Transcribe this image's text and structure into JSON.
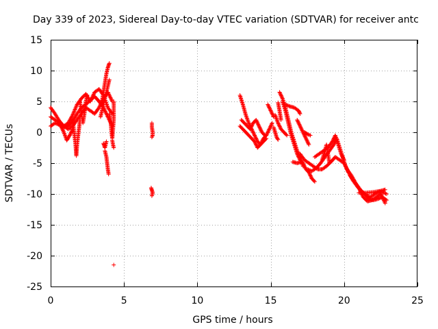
{
  "chart_data": {
    "type": "scatter",
    "title": "Day 339 of 2023, Sidereal Day-to-day VTEC variation (SDTVAR) for receiver antc",
    "xlabel": "GPS time / hours",
    "ylabel": "SDTVAR / TECUs",
    "xlim": [
      0,
      25
    ],
    "ylim": [
      -25,
      15
    ],
    "xticks": [
      "0",
      "5",
      "10",
      "15",
      "20",
      "25"
    ],
    "yticks": [
      "15",
      "10",
      "5",
      "0",
      "-5",
      "-10",
      "-15",
      "-20",
      "-25"
    ],
    "grid": true,
    "marker": "+",
    "color": "#ff0000",
    "series": [
      {
        "name": "SDTVAR",
        "segments": [
          [
            [
              0.0,
              4.0
            ],
            [
              0.3,
              3.0
            ],
            [
              0.6,
              1.8
            ],
            [
              0.9,
              1.0
            ],
            [
              1.2,
              1.5
            ],
            [
              1.5,
              2.8
            ],
            [
              1.8,
              4.5
            ],
            [
              2.1,
              5.5
            ],
            [
              2.4,
              6.2
            ],
            [
              2.7,
              5.0
            ],
            [
              3.0,
              6.5
            ],
            [
              3.3,
              7.0
            ],
            [
              3.6,
              6.0
            ],
            [
              3.9,
              4.0
            ],
            [
              4.2,
              3.0
            ]
          ],
          [
            [
              0.0,
              1.0
            ],
            [
              0.3,
              1.5
            ],
            [
              0.6,
              1.2
            ],
            [
              0.9,
              0.8
            ],
            [
              1.2,
              1.0
            ],
            [
              1.5,
              1.8
            ],
            [
              1.8,
              3.0
            ],
            [
              2.1,
              4.0
            ],
            [
              2.4,
              4.5
            ],
            [
              2.7,
              5.2
            ],
            [
              3.0,
              5.8
            ],
            [
              3.3,
              5.0
            ],
            [
              3.6,
              4.0
            ],
            [
              3.9,
              2.5
            ],
            [
              4.2,
              1.0
            ]
          ],
          [
            [
              0.0,
              2.5
            ],
            [
              0.3,
              2.0
            ],
            [
              0.6,
              1.5
            ],
            [
              0.9,
              1.0
            ],
            [
              1.2,
              0.5
            ],
            [
              1.5,
              1.0
            ],
            [
              1.8,
              2.0
            ],
            [
              2.1,
              3.0
            ],
            [
              2.4,
              4.0
            ],
            [
              2.7,
              3.5
            ],
            [
              3.0,
              3.0
            ],
            [
              3.3,
              4.0
            ],
            [
              3.6,
              5.5
            ],
            [
              3.9,
              6.5
            ],
            [
              4.2,
              5.0
            ]
          ],
          [
            [
              0.5,
              1.8
            ],
            [
              0.7,
              1.0
            ],
            [
              0.9,
              0.0
            ],
            [
              1.1,
              -1.3
            ],
            [
              1.3,
              -0.5
            ],
            [
              1.5,
              0.5
            ]
          ],
          [
            [
              1.5,
              2.0
            ],
            [
              1.6,
              0.0
            ],
            [
              1.7,
              -2.0
            ],
            [
              1.75,
              -3.8
            ],
            [
              1.8,
              -2.0
            ],
            [
              1.9,
              0.0
            ],
            [
              2.0,
              2.0
            ]
          ],
          [
            [
              2.0,
              5.0
            ],
            [
              2.1,
              3.0
            ],
            [
              2.2,
              1.5
            ],
            [
              2.3,
              3.0
            ],
            [
              2.4,
              5.0
            ],
            [
              2.5,
              6.0
            ]
          ],
          [
            [
              3.5,
              5.0
            ],
            [
              3.6,
              6.5
            ],
            [
              3.7,
              8.0
            ],
            [
              3.8,
              9.5
            ],
            [
              3.9,
              10.5
            ],
            [
              4.0,
              11.2
            ]
          ],
          [
            [
              3.4,
              2.5
            ],
            [
              3.5,
              3.5
            ],
            [
              3.6,
              4.5
            ],
            [
              3.7,
              5.5
            ],
            [
              3.8,
              6.5
            ],
            [
              3.9,
              7.5
            ],
            [
              4.0,
              8.5
            ]
          ],
          [
            [
              3.7,
              -3.0
            ],
            [
              3.8,
              -4.0
            ],
            [
              3.85,
              -5.0
            ],
            [
              3.9,
              -6.0
            ],
            [
              3.95,
              -6.8
            ]
          ],
          [
            [
              3.6,
              -1.8
            ],
            [
              3.7,
              -2.5
            ],
            [
              3.8,
              -1.5
            ]
          ],
          [
            [
              4.0,
              3.0
            ],
            [
              4.1,
              1.5
            ],
            [
              4.15,
              0.0
            ],
            [
              4.2,
              -1.0
            ],
            [
              4.3,
              2.0
            ],
            [
              4.3,
              5.0
            ]
          ],
          [
            [
              4.2,
              -1.3
            ],
            [
              4.25,
              -2.0
            ],
            [
              4.3,
              -2.5
            ]
          ],
          [
            [
              4.3,
              -21.5
            ]
          ],
          [
            [
              6.9,
              1.5
            ],
            [
              6.9,
              0.8
            ],
            [
              6.95,
              0.0
            ],
            [
              6.95,
              -0.5
            ],
            [
              6.9,
              -0.8
            ]
          ],
          [
            [
              6.85,
              -9.0
            ],
            [
              6.9,
              -9.4
            ],
            [
              6.95,
              -9.8
            ],
            [
              6.9,
              -10.3
            ]
          ],
          [
            [
              12.9,
              6.0
            ],
            [
              13.1,
              4.5
            ],
            [
              13.3,
              2.8
            ],
            [
              13.5,
              1.5
            ],
            [
              13.7,
              0.5
            ],
            [
              13.9,
              -0.5
            ],
            [
              14.1,
              -1.5
            ],
            [
              14.3,
              -2.0
            ],
            [
              14.5,
              -1.0
            ],
            [
              14.7,
              -0.5
            ],
            [
              14.9,
              0.5
            ],
            [
              15.1,
              1.5
            ]
          ],
          [
            [
              12.9,
              1.0
            ],
            [
              13.1,
              0.5
            ],
            [
              13.3,
              0.0
            ],
            [
              13.5,
              -0.5
            ],
            [
              13.7,
              -1.0
            ],
            [
              13.9,
              -1.5
            ],
            [
              14.1,
              -2.5
            ],
            [
              14.3,
              -2.0
            ],
            [
              14.5,
              -1.5
            ],
            [
              14.7,
              -1.0
            ]
          ],
          [
            [
              13.0,
              2.0
            ],
            [
              13.2,
              1.5
            ],
            [
              13.4,
              1.0
            ],
            [
              13.6,
              0.5
            ],
            [
              13.8,
              1.5
            ],
            [
              14.0,
              2.0
            ],
            [
              14.2,
              1.0
            ],
            [
              14.4,
              0.0
            ],
            [
              14.6,
              -0.5
            ]
          ],
          [
            [
              14.8,
              4.5
            ],
            [
              15.0,
              3.5
            ],
            [
              15.2,
              2.5
            ]
          ],
          [
            [
              15.5,
              4.8
            ],
            [
              15.6,
              3.5
            ],
            [
              15.7,
              2.0
            ]
          ],
          [
            [
              15.6,
              6.5
            ],
            [
              15.8,
              5.5
            ],
            [
              16.0,
              4.0
            ],
            [
              16.2,
              2.0
            ],
            [
              16.4,
              0.0
            ],
            [
              16.6,
              -1.5
            ],
            [
              16.8,
              -3.0
            ],
            [
              17.0,
              -4.0
            ],
            [
              17.2,
              -5.5
            ]
          ],
          [
            [
              15.8,
              5.0
            ],
            [
              16.0,
              3.5
            ],
            [
              16.2,
              1.5
            ],
            [
              16.4,
              -0.5
            ],
            [
              16.6,
              -2.0
            ],
            [
              16.8,
              -3.5
            ],
            [
              17.0,
              -4.5
            ],
            [
              17.2,
              -5.0
            ],
            [
              17.4,
              -6.0
            ],
            [
              17.6,
              -6.5
            ],
            [
              17.8,
              -7.5
            ],
            [
              18.0,
              -8.0
            ]
          ],
          [
            [
              16.0,
              4.5
            ],
            [
              16.3,
              4.2
            ],
            [
              16.6,
              4.0
            ],
            [
              16.9,
              3.5
            ],
            [
              17.0,
              3.0
            ]
          ],
          [
            [
              16.8,
              2.0
            ],
            [
              17.0,
              1.0
            ],
            [
              17.2,
              0.0
            ],
            [
              17.4,
              -1.0
            ],
            [
              17.6,
              -2.0
            ]
          ],
          [
            [
              16.5,
              -4.8
            ],
            [
              16.8,
              -5.0
            ],
            [
              17.1,
              -4.8
            ]
          ],
          [
            [
              15.3,
              2.8
            ],
            [
              15.5,
              1.5
            ],
            [
              15.7,
              0.5
            ],
            [
              15.9,
              0.0
            ],
            [
              16.1,
              -0.5
            ]
          ],
          [
            [
              15.2,
              0.8
            ],
            [
              15.3,
              0.0
            ],
            [
              15.4,
              -0.8
            ],
            [
              15.5,
              -1.2
            ]
          ],
          [
            [
              17.3,
              0.0
            ],
            [
              17.5,
              -0.3
            ],
            [
              17.7,
              -0.5
            ]
          ],
          [
            [
              17.0,
              -3.5
            ],
            [
              17.3,
              -4.5
            ],
            [
              17.6,
              -5.0
            ],
            [
              17.9,
              -5.5
            ],
            [
              18.2,
              -6.0
            ],
            [
              18.5,
              -6.0
            ],
            [
              18.8,
              -5.5
            ],
            [
              19.1,
              -4.8
            ],
            [
              19.4,
              -4.0
            ],
            [
              19.7,
              -4.5
            ],
            [
              20.0,
              -5.0
            ]
          ],
          [
            [
              17.5,
              -6.0
            ],
            [
              17.8,
              -6.3
            ],
            [
              18.1,
              -5.8
            ],
            [
              18.4,
              -5.0
            ],
            [
              18.7,
              -4.0
            ],
            [
              19.0,
              -3.0
            ],
            [
              19.3,
              -2.0
            ],
            [
              19.5,
              -1.0
            ],
            [
              19.7,
              -2.5
            ],
            [
              19.9,
              -4.0
            ],
            [
              20.1,
              -5.5
            ],
            [
              20.3,
              -6.5
            ]
          ],
          [
            [
              18.0,
              -4.0
            ],
            [
              18.3,
              -3.5
            ],
            [
              18.6,
              -3.0
            ],
            [
              18.9,
              -2.5
            ],
            [
              19.2,
              -1.5
            ],
            [
              19.4,
              -0.5
            ],
            [
              19.6,
              -2.0
            ],
            [
              19.8,
              -3.5
            ],
            [
              20.0,
              -4.5
            ]
          ],
          [
            [
              18.5,
              -4.5
            ],
            [
              18.7,
              -3.0
            ],
            [
              18.8,
              -2.0
            ],
            [
              18.9,
              -3.5
            ],
            [
              19.0,
              -5.0
            ]
          ],
          [
            [
              20.0,
              -5.0
            ],
            [
              20.3,
              -6.5
            ],
            [
              20.6,
              -7.8
            ],
            [
              20.9,
              -8.8
            ],
            [
              21.2,
              -9.6
            ],
            [
              21.5,
              -10.2
            ],
            [
              21.8,
              -10.5
            ],
            [
              22.1,
              -10.0
            ],
            [
              22.4,
              -9.6
            ],
            [
              22.7,
              -9.8
            ],
            [
              22.9,
              -10.0
            ]
          ],
          [
            [
              20.2,
              -6.0
            ],
            [
              20.5,
              -7.0
            ],
            [
              20.8,
              -8.3
            ],
            [
              21.1,
              -9.3
            ],
            [
              21.4,
              -10.0
            ],
            [
              21.7,
              -10.8
            ],
            [
              22.0,
              -11.0
            ],
            [
              22.3,
              -10.8
            ],
            [
              22.6,
              -10.5
            ],
            [
              22.9,
              -11.0
            ]
          ],
          [
            [
              20.4,
              -7.0
            ],
            [
              20.7,
              -8.0
            ],
            [
              21.0,
              -9.0
            ],
            [
              21.3,
              -10.5
            ],
            [
              21.6,
              -11.2
            ],
            [
              21.9,
              -11.0
            ],
            [
              22.2,
              -10.5
            ],
            [
              22.5,
              -10.0
            ],
            [
              22.8,
              -11.5
            ]
          ],
          [
            [
              21.0,
              -9.8
            ],
            [
              21.5,
              -9.8
            ],
            [
              22.0,
              -9.7
            ],
            [
              22.5,
              -9.5
            ],
            [
              22.8,
              -9.3
            ]
          ]
        ]
      }
    ]
  }
}
